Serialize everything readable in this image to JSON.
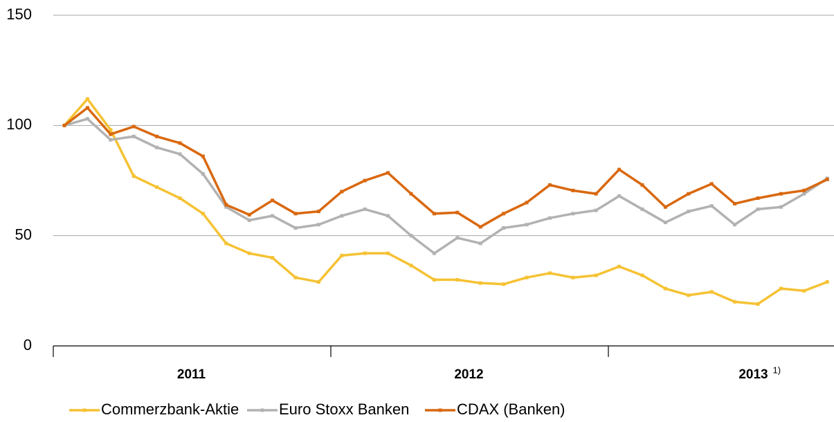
{
  "chart_data": {
    "type": "line",
    "categories": [
      null,
      null,
      null,
      null,
      null,
      null,
      null,
      null,
      null,
      null,
      null,
      null,
      null,
      null,
      null,
      null,
      null,
      null,
      null,
      null,
      null,
      null,
      null,
      null,
      null,
      null,
      null,
      null,
      null,
      null,
      null,
      null,
      null,
      null
    ],
    "x_groups": [
      {
        "label": "2011"
      },
      {
        "label": "2012"
      },
      {
        "label": "2013",
        "note": "1)"
      }
    ],
    "ylim": [
      0,
      150
    ],
    "yticks": [
      0,
      50,
      100,
      150
    ],
    "grid": true,
    "legend": "bottom",
    "series": [
      {
        "name": "Commerzbank-Aktie",
        "color": "#f5c233",
        "values": [
          100,
          112,
          98,
          77,
          72,
          67,
          60,
          46.5,
          42,
          40,
          31,
          29,
          41,
          42,
          42,
          36.5,
          30,
          30,
          28.5,
          28,
          31,
          33,
          31,
          32,
          36,
          32,
          26,
          23,
          24.5,
          20,
          19,
          26,
          25,
          29
        ]
      },
      {
        "name": "Euro Stoxx Banken",
        "color": "#b2b2b2",
        "values": [
          100,
          103,
          93.5,
          95,
          90,
          87,
          78,
          63,
          57,
          59,
          53.5,
          55,
          59,
          62,
          59,
          50,
          42,
          49,
          46.5,
          53.5,
          55,
          58,
          60,
          61.5,
          68,
          62,
          56,
          61,
          63.5,
          55,
          62,
          63,
          69,
          76
        ]
      },
      {
        "name": "CDAX (Banken)",
        "color": "#d9680f",
        "values": [
          100,
          108,
          96,
          99.5,
          95,
          92,
          86,
          64,
          59.5,
          66,
          60,
          61,
          70,
          75,
          78.5,
          69,
          60,
          60.5,
          54,
          60,
          65,
          73,
          70.5,
          69,
          80,
          73,
          63,
          69,
          73.5,
          64.5,
          67,
          69,
          70.5,
          75.5
        ]
      }
    ]
  }
}
